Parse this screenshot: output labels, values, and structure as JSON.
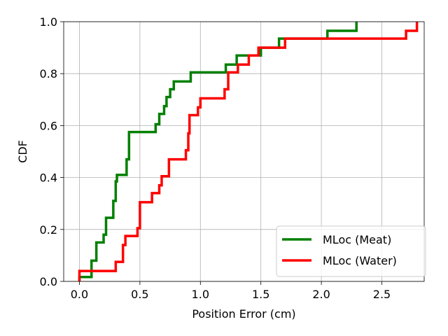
{
  "chart_data": {
    "type": "line",
    "step": true,
    "xlabel": "Position Error (cm)",
    "ylabel": "CDF",
    "xlim": [
      -0.13,
      2.85
    ],
    "ylim": [
      0,
      1.0
    ],
    "grid": true,
    "legend_position": "bottom-right",
    "x_ticks": [
      0.0,
      0.5,
      1.0,
      1.5,
      2.0,
      2.5
    ],
    "x_tick_labels": [
      "0.0",
      "0.5",
      "1.0",
      "1.5",
      "2.0",
      "2.5"
    ],
    "y_ticks": [
      0.0,
      0.2,
      0.4,
      0.6,
      0.8,
      1.0
    ],
    "y_tick_labels": [
      "0.0",
      "0.2",
      "0.4",
      "0.6",
      "0.8",
      "1.0"
    ],
    "series": [
      {
        "name": "MLoc (Meat)",
        "color": "#008000",
        "points": [
          [
            0.0,
            0.0
          ],
          [
            0.0,
            0.017
          ],
          [
            0.1,
            0.017
          ],
          [
            0.1,
            0.08
          ],
          [
            0.14,
            0.08
          ],
          [
            0.14,
            0.15
          ],
          [
            0.2,
            0.15
          ],
          [
            0.2,
            0.18
          ],
          [
            0.22,
            0.18
          ],
          [
            0.22,
            0.245
          ],
          [
            0.28,
            0.245
          ],
          [
            0.28,
            0.31
          ],
          [
            0.3,
            0.31
          ],
          [
            0.3,
            0.385
          ],
          [
            0.31,
            0.385
          ],
          [
            0.31,
            0.41
          ],
          [
            0.39,
            0.41
          ],
          [
            0.39,
            0.47
          ],
          [
            0.41,
            0.47
          ],
          [
            0.41,
            0.575
          ],
          [
            0.63,
            0.575
          ],
          [
            0.63,
            0.605
          ],
          [
            0.66,
            0.605
          ],
          [
            0.66,
            0.645
          ],
          [
            0.7,
            0.645
          ],
          [
            0.7,
            0.675
          ],
          [
            0.72,
            0.675
          ],
          [
            0.72,
            0.71
          ],
          [
            0.75,
            0.71
          ],
          [
            0.75,
            0.74
          ],
          [
            0.78,
            0.74
          ],
          [
            0.78,
            0.77
          ],
          [
            0.92,
            0.77
          ],
          [
            0.92,
            0.805
          ],
          [
            1.21,
            0.805
          ],
          [
            1.21,
            0.835
          ],
          [
            1.3,
            0.835
          ],
          [
            1.3,
            0.87
          ],
          [
            1.5,
            0.87
          ],
          [
            1.5,
            0.9
          ],
          [
            1.65,
            0.9
          ],
          [
            1.65,
            0.935
          ],
          [
            2.05,
            0.935
          ],
          [
            2.05,
            0.965
          ],
          [
            2.29,
            0.965
          ],
          [
            2.29,
            1.0
          ]
        ]
      },
      {
        "name": "MLoc (Water)",
        "color": "#ff0000",
        "points": [
          [
            0.0,
            0.0
          ],
          [
            0.0,
            0.04
          ],
          [
            0.3,
            0.04
          ],
          [
            0.3,
            0.075
          ],
          [
            0.36,
            0.075
          ],
          [
            0.36,
            0.14
          ],
          [
            0.38,
            0.14
          ],
          [
            0.38,
            0.175
          ],
          [
            0.48,
            0.175
          ],
          [
            0.48,
            0.205
          ],
          [
            0.5,
            0.205
          ],
          [
            0.5,
            0.305
          ],
          [
            0.6,
            0.305
          ],
          [
            0.6,
            0.34
          ],
          [
            0.66,
            0.34
          ],
          [
            0.66,
            0.37
          ],
          [
            0.68,
            0.37
          ],
          [
            0.68,
            0.405
          ],
          [
            0.74,
            0.405
          ],
          [
            0.74,
            0.47
          ],
          [
            0.88,
            0.47
          ],
          [
            0.88,
            0.505
          ],
          [
            0.9,
            0.505
          ],
          [
            0.9,
            0.57
          ],
          [
            0.91,
            0.57
          ],
          [
            0.91,
            0.64
          ],
          [
            0.98,
            0.64
          ],
          [
            0.98,
            0.67
          ],
          [
            1.0,
            0.67
          ],
          [
            1.0,
            0.705
          ],
          [
            1.2,
            0.705
          ],
          [
            1.2,
            0.74
          ],
          [
            1.23,
            0.74
          ],
          [
            1.23,
            0.805
          ],
          [
            1.31,
            0.805
          ],
          [
            1.31,
            0.835
          ],
          [
            1.4,
            0.835
          ],
          [
            1.4,
            0.87
          ],
          [
            1.48,
            0.87
          ],
          [
            1.48,
            0.9
          ],
          [
            1.7,
            0.9
          ],
          [
            1.7,
            0.935
          ],
          [
            2.7,
            0.935
          ],
          [
            2.7,
            0.965
          ],
          [
            2.79,
            0.965
          ],
          [
            2.79,
            1.0
          ]
        ]
      }
    ]
  }
}
